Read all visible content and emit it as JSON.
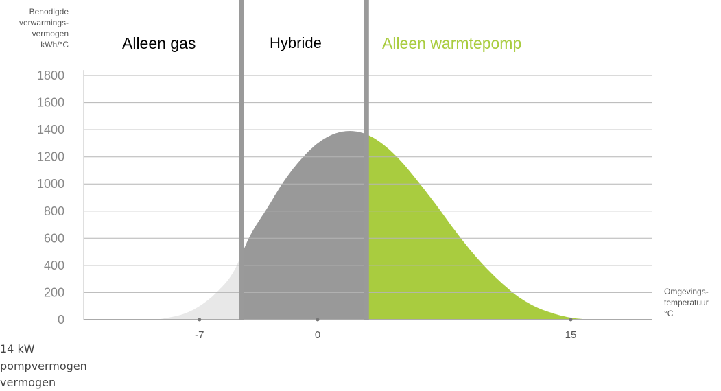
{
  "chart_data": {
    "type": "area",
    "y_axis": {
      "label_lines": [
        "Benodigde",
        "verwarmings-",
        "vermogen",
        "kWh/°C"
      ],
      "ticks": [
        0,
        200,
        400,
        600,
        800,
        1000,
        1200,
        1400,
        1600,
        1800
      ],
      "ylim": [
        0,
        1900
      ]
    },
    "x_axis": {
      "label_lines": [
        "Omgevings-",
        "temperatuur",
        "°C"
      ],
      "ticks": [
        -7,
        0,
        15
      ],
      "xlim": [
        -12.5,
        21
      ]
    },
    "regions": [
      {
        "name": "Alleen gas",
        "color": "#000000",
        "fill": "#e8e8e8",
        "x_range": [
          -12.5,
          -4.5
        ]
      },
      {
        "name": "Hybride",
        "color": "#000000",
        "fill": "#999999",
        "x_range": [
          -4.5,
          2.9
        ]
      },
      {
        "name": "Alleen warmtepomp",
        "color": "#a9cc3f",
        "fill": "#a9cc3f",
        "x_range": [
          2.9,
          21
        ]
      }
    ],
    "boundaries": [
      -4.5,
      2.9
    ],
    "curve": {
      "x": [
        -9.5,
        -8,
        -7,
        -6,
        -5,
        -4,
        -3,
        -2,
        -1,
        0,
        1,
        2,
        3,
        4,
        5,
        6,
        7,
        8,
        9,
        10,
        11,
        12,
        13,
        14,
        15,
        16,
        17
      ],
      "y": [
        0,
        40,
        100,
        200,
        350,
        620,
        820,
        1020,
        1180,
        1300,
        1370,
        1390,
        1360,
        1280,
        1160,
        1010,
        850,
        680,
        520,
        380,
        260,
        160,
        90,
        45,
        15,
        3,
        0
      ]
    },
    "bottom_text_lines": [
      "14 kW",
      "pompvermogen",
      "vermogen"
    ]
  },
  "colors": {
    "light_gray": "#e8e8e8",
    "mid_gray": "#999999",
    "green": "#a9cc3f",
    "divider": "#9a9a9a",
    "grid": "#b5b5b5"
  }
}
